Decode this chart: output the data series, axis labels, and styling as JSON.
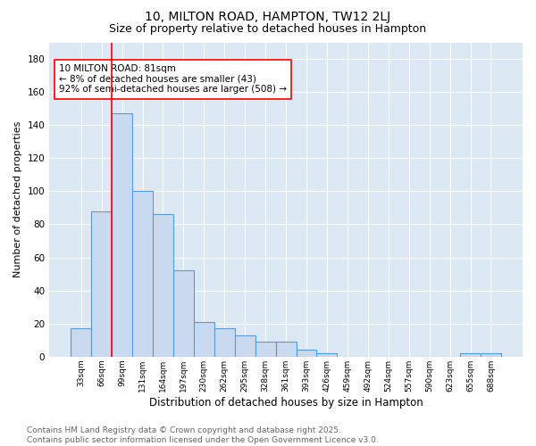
{
  "title": "10, MILTON ROAD, HAMPTON, TW12 2LJ",
  "subtitle": "Size of property relative to detached houses in Hampton",
  "xlabel": "Distribution of detached houses by size in Hampton",
  "ylabel": "Number of detached properties",
  "bar_values": [
    17,
    88,
    147,
    100,
    86,
    52,
    21,
    17,
    13,
    9,
    9,
    4,
    2,
    0,
    0,
    0,
    0,
    0,
    0,
    2,
    2
  ],
  "bin_labels": [
    "33sqm",
    "66sqm",
    "99sqm",
    "131sqm",
    "164sqm",
    "197sqm",
    "230sqm",
    "262sqm",
    "295sqm",
    "328sqm",
    "361sqm",
    "393sqm",
    "426sqm",
    "459sqm",
    "492sqm",
    "524sqm",
    "557sqm",
    "590sqm",
    "623sqm",
    "655sqm",
    "688sqm"
  ],
  "bar_color": "#c9d9ef",
  "bar_edge_color": "#5b9bd5",
  "red_line_x": 1.5,
  "annotation_text": "10 MILTON ROAD: 81sqm\n← 8% of detached houses are smaller (43)\n92% of semi-detached houses are larger (508) →",
  "annotation_box_color": "white",
  "annotation_box_edge": "red",
  "ylim": [
    0,
    190
  ],
  "yticks": [
    0,
    20,
    40,
    60,
    80,
    100,
    120,
    140,
    160,
    180
  ],
  "background_color": "#dde8f5",
  "footnote": "Contains HM Land Registry data © Crown copyright and database right 2025.\nContains public sector information licensed under the Open Government Licence v3.0.",
  "title_fontsize": 10,
  "subtitle_fontsize": 9,
  "annotation_fontsize": 7.5,
  "footnote_fontsize": 6.5,
  "ylabel_fontsize": 8,
  "xlabel_fontsize": 8.5
}
